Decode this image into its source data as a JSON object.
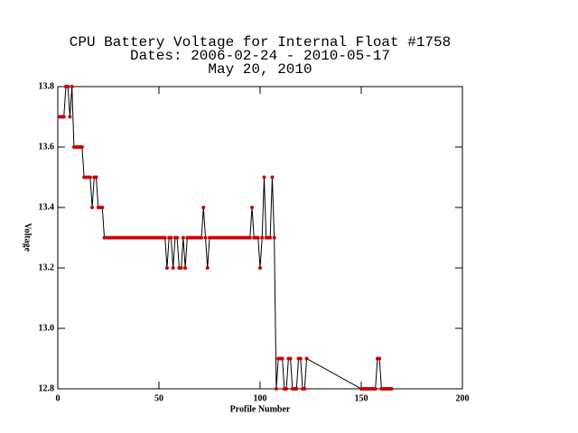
{
  "chart_data": {
    "type": "line",
    "title": [
      "CPU Battery Voltage for Internal Float #1758",
      "Dates:  2006-02-24 -  2010-05-17",
      "May 20, 2010"
    ],
    "xlabel": "Profile Number",
    "ylabel": "Voltage",
    "line_color": "#000000",
    "marker_color": "#cc0000",
    "xlim": [
      0,
      200
    ],
    "ylim": [
      12.8,
      13.8
    ],
    "xticks": [
      0,
      50,
      100,
      150,
      200
    ],
    "yticks": [
      12.8,
      {
        "value": 13,
        "label": "13.0"
      },
      13.2,
      13.4,
      13.6,
      13.8
    ],
    "x": [
      1,
      2,
      3,
      4,
      5,
      6,
      7,
      8,
      9,
      10,
      11,
      12,
      13,
      14,
      15,
      16,
      17,
      18,
      19,
      20,
      21,
      22,
      23,
      24,
      25,
      26,
      27,
      28,
      29,
      30,
      31,
      32,
      33,
      34,
      35,
      36,
      37,
      38,
      39,
      40,
      41,
      42,
      43,
      44,
      45,
      46,
      47,
      48,
      49,
      50,
      51,
      52,
      53,
      54,
      55,
      56,
      57,
      58,
      59,
      60,
      61,
      62,
      63,
      64,
      65,
      66,
      67,
      68,
      69,
      70,
      71,
      72,
      73,
      74,
      75,
      76,
      77,
      78,
      79,
      80,
      81,
      82,
      83,
      84,
      85,
      86,
      87,
      88,
      89,
      90,
      91,
      92,
      93,
      94,
      95,
      96,
      97,
      98,
      99,
      100,
      101,
      102,
      103,
      104,
      105,
      106,
      107,
      108,
      109,
      110,
      111,
      112,
      113,
      114,
      115,
      116,
      117,
      118,
      119,
      120,
      121,
      122,
      123,
      150,
      151,
      152,
      153,
      154,
      155,
      156,
      157,
      158,
      159,
      160,
      161,
      162,
      163,
      164,
      165
    ],
    "values": [
      13.7,
      13.7,
      13.7,
      13.8,
      13.8,
      13.7,
      13.8,
      13.6,
      13.6,
      13.6,
      13.6,
      13.6,
      13.5,
      13.5,
      13.5,
      13.5,
      13.4,
      13.5,
      13.5,
      13.4,
      13.4,
      13.4,
      13.3,
      13.3,
      13.3,
      13.3,
      13.3,
      13.3,
      13.3,
      13.3,
      13.3,
      13.3,
      13.3,
      13.3,
      13.3,
      13.3,
      13.3,
      13.3,
      13.3,
      13.3,
      13.3,
      13.3,
      13.3,
      13.3,
      13.3,
      13.3,
      13.3,
      13.3,
      13.3,
      13.3,
      13.3,
      13.3,
      13.3,
      13.2,
      13.3,
      13.3,
      13.2,
      13.3,
      13.3,
      13.2,
      13.2,
      13.3,
      13.2,
      13.3,
      13.3,
      13.3,
      13.3,
      13.3,
      13.3,
      13.3,
      13.3,
      13.4,
      13.3,
      13.2,
      13.3,
      13.3,
      13.3,
      13.3,
      13.3,
      13.3,
      13.3,
      13.3,
      13.3,
      13.3,
      13.3,
      13.3,
      13.3,
      13.3,
      13.3,
      13.3,
      13.3,
      13.3,
      13.3,
      13.3,
      13.3,
      13.4,
      13.3,
      13.3,
      13.3,
      13.2,
      13.3,
      13.5,
      13.3,
      13.3,
      13.3,
      13.5,
      13.3,
      12.8,
      12.9,
      12.9,
      12.9,
      12.8,
      12.8,
      12.9,
      12.9,
      12.8,
      12.8,
      12.8,
      12.9,
      12.9,
      12.8,
      12.8,
      12.9,
      12.8,
      12.8,
      12.8,
      12.8,
      12.8,
      12.8,
      12.8,
      12.8,
      12.9,
      12.9,
      12.8,
      12.8,
      12.8,
      12.8,
      12.8,
      12.8
    ]
  }
}
